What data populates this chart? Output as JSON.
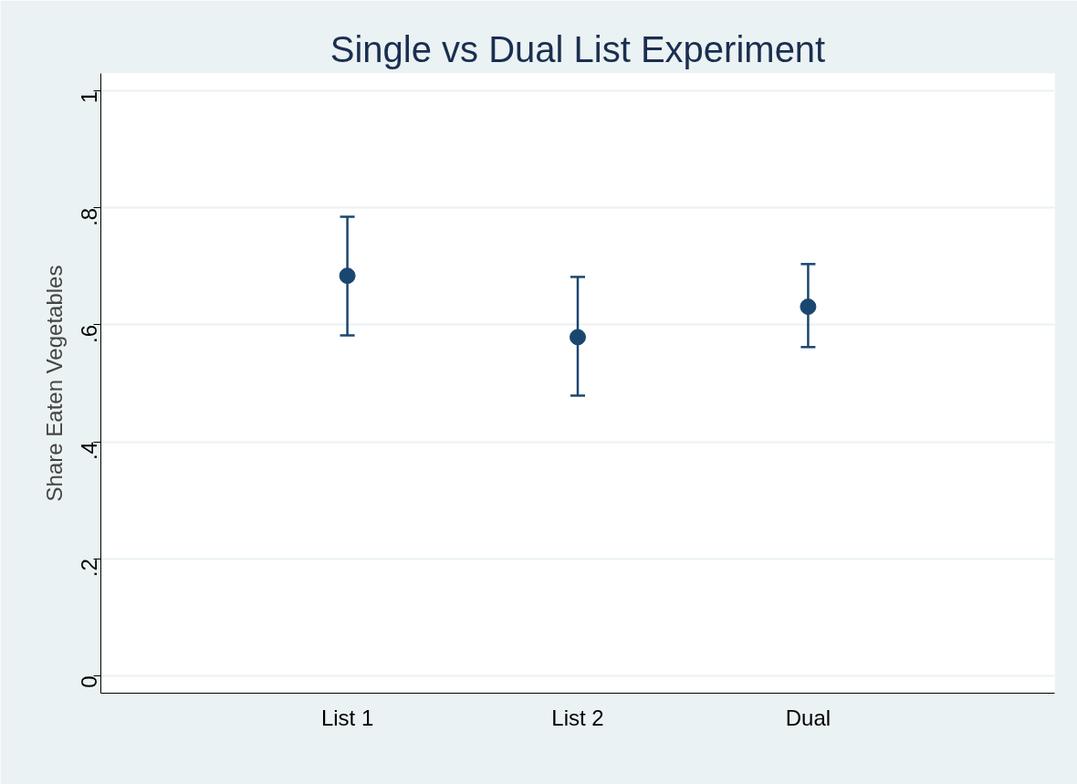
{
  "chart_data": {
    "type": "scatter",
    "title": "Single vs Dual List Experiment",
    "ylabel": "Share Eaten Vegetables",
    "categories": [
      "List 1",
      "List 2",
      "Dual"
    ],
    "series": [
      {
        "color": "#1a476f",
        "values": [
          0.684,
          0.579,
          0.631
        ],
        "errors": [
          [
            0.582,
            0.785
          ],
          [
            0.479,
            0.682
          ],
          [
            0.562,
            0.704
          ]
        ]
      }
    ],
    "ylim": [
      -0.03,
      1.03
    ],
    "yticks": [
      {
        "value": 0,
        "label": "0"
      },
      {
        "value": 0.2,
        "label": ".2"
      },
      {
        "value": 0.4,
        "label": ".4"
      },
      {
        "value": 0.6,
        "label": ".6"
      },
      {
        "value": 0.8,
        "label": ".8"
      },
      {
        "value": 1,
        "label": "1"
      }
    ],
    "grid": "y",
    "marker": "circle"
  }
}
